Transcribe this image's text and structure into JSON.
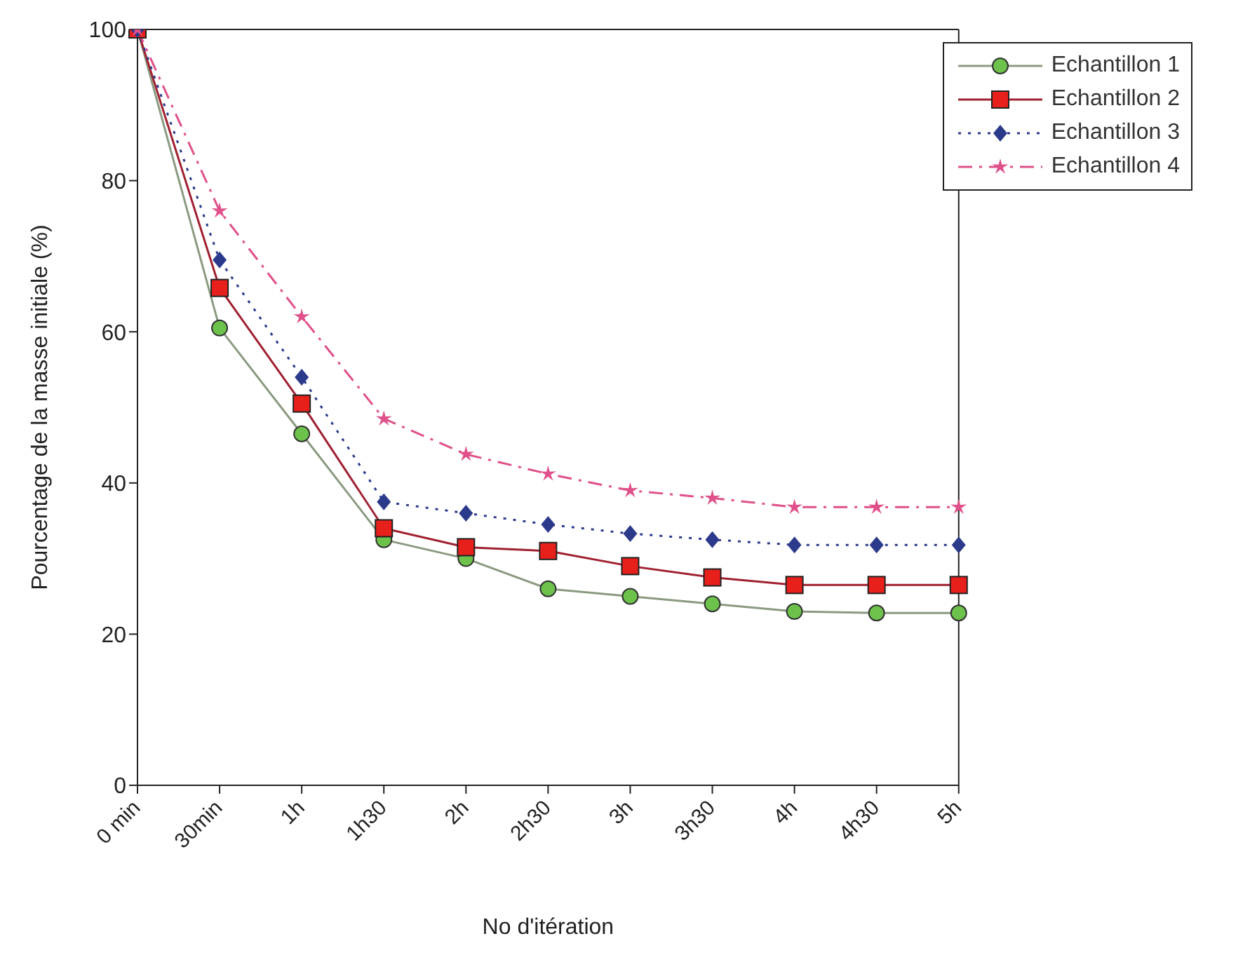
{
  "chart_data": {
    "type": "line",
    "xlabel": "No d'itération",
    "ylabel": "Pourcentage de la masse initiale (%)",
    "categories": [
      "0 min",
      "30min",
      "1h",
      "1h30",
      "2h",
      "2h30",
      "3h",
      "3h30",
      "4h",
      "4h30",
      "5h"
    ],
    "ylim": [
      0,
      100
    ],
    "yticks": [
      0,
      20,
      40,
      60,
      80,
      100
    ],
    "legend": "top right",
    "series": [
      {
        "name": "Echantillon 1",
        "color": "#6cc24a",
        "marker": "circle",
        "line_style": "solid",
        "values": [
          100,
          60.5,
          46.5,
          32.5,
          30,
          26,
          25,
          24,
          23,
          22.8,
          22.8
        ]
      },
      {
        "name": "Echantillon 2",
        "color": "#e8201c",
        "marker": "square",
        "line_style": "solid",
        "values": [
          100,
          65.8,
          50.5,
          34,
          31.5,
          31,
          29,
          27.5,
          26.5,
          26.5,
          26.5
        ]
      },
      {
        "name": "Echantillon 3",
        "color": "#2c3a8c",
        "marker": "diamond",
        "line_style": "dotted",
        "values": [
          100,
          69.5,
          54,
          37.5,
          36,
          34.5,
          33.3,
          32.5,
          31.8,
          31.8,
          31.8
        ]
      },
      {
        "name": "Echantillon 4",
        "color": "#e0508a",
        "marker": "star",
        "line_style": "dashed",
        "values": [
          100,
          76,
          62,
          48.5,
          43.8,
          41.2,
          39,
          38,
          36.8,
          36.8,
          36.8
        ]
      }
    ]
  }
}
